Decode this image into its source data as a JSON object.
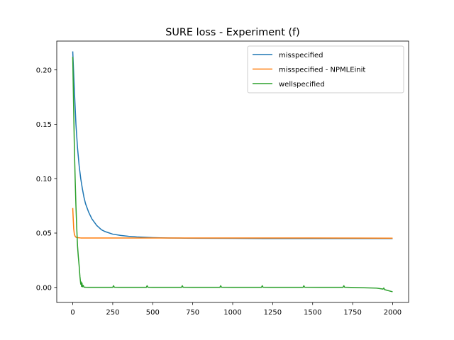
{
  "chart_data": {
    "type": "line",
    "title": "SURE loss - Experiment (f)",
    "xlabel": "",
    "ylabel": "",
    "xlim": [
      -100,
      2100
    ],
    "ylim": [
      -0.0138,
      0.2265
    ],
    "xticks": [
      0,
      250,
      500,
      750,
      1000,
      1250,
      1500,
      1750,
      2000
    ],
    "xtick_labels": [
      "0",
      "250",
      "500",
      "750",
      "1000",
      "1250",
      "1500",
      "1750",
      "2000"
    ],
    "yticks": [
      0.0,
      0.05,
      0.1,
      0.15,
      0.2
    ],
    "ytick_labels": [
      "0.00",
      "0.05",
      "0.10",
      "0.15",
      "0.20"
    ],
    "grid": false,
    "legend_position": "top-right",
    "series": [
      {
        "name": "misspecified",
        "color": "#1f77b4",
        "x": [
          0,
          10,
          20,
          30,
          40,
          50,
          60,
          70,
          80,
          100,
          120,
          150,
          180,
          200,
          250,
          300,
          350,
          400,
          500,
          600,
          700,
          800,
          1000,
          1200,
          1500,
          1800,
          2000
        ],
        "y": [
          0.217,
          0.182,
          0.15,
          0.128,
          0.112,
          0.1,
          0.091,
          0.083,
          0.077,
          0.069,
          0.063,
          0.057,
          0.053,
          0.0515,
          0.049,
          0.0478,
          0.047,
          0.0464,
          0.0458,
          0.0455,
          0.0453,
          0.0452,
          0.0451,
          0.045,
          0.045,
          0.045,
          0.045
        ]
      },
      {
        "name": "misspecified - NPMLEinit",
        "color": "#ff7f0e",
        "x": [
          0,
          3,
          6,
          10,
          15,
          20,
          30,
          50,
          100,
          500,
          1000,
          1500,
          2000
        ],
        "y": [
          0.073,
          0.063,
          0.054,
          0.049,
          0.047,
          0.0462,
          0.0458,
          0.0455,
          0.0455,
          0.0455,
          0.0455,
          0.0455,
          0.0453
        ]
      },
      {
        "name": "wellspecified",
        "color": "#2ca02c",
        "x": [
          0,
          5,
          10,
          15,
          20,
          25,
          30,
          35,
          40,
          45,
          50,
          53,
          55,
          58,
          60,
          65,
          70,
          80,
          100,
          150,
          200,
          250,
          255,
          260,
          300,
          350,
          400,
          460,
          465,
          470,
          500,
          600,
          680,
          685,
          690,
          750,
          900,
          920,
          925,
          930,
          1000,
          1100,
          1180,
          1185,
          1190,
          1300,
          1440,
          1445,
          1450,
          1550,
          1690,
          1695,
          1700,
          1800,
          1900,
          1940,
          1945,
          1950,
          1970,
          2000
        ],
        "y": [
          0.212,
          0.17,
          0.13,
          0.1,
          0.075,
          0.055,
          0.038,
          0.028,
          0.02,
          0.01,
          0.003,
          0.005,
          0.001,
          0.004,
          0.0005,
          0.002,
          0.0003,
          0.0002,
          0.0001,
          0.0001,
          0.0001,
          0.0001,
          0.0016,
          0.0002,
          0.0001,
          0.0001,
          0.0001,
          0.0001,
          0.0016,
          0.0002,
          0.0001,
          0.0001,
          0.0001,
          0.0016,
          0.0002,
          0.0001,
          0.0001,
          0.0001,
          0.0016,
          0.0002,
          0.0001,
          0.0001,
          0.0001,
          0.0016,
          0.0002,
          0.0001,
          0.0001,
          0.0016,
          0.0002,
          0.0001,
          0.0001,
          0.0016,
          0.0002,
          -0.0002,
          -0.0006,
          -0.0015,
          -0.0005,
          -0.002,
          -0.0028,
          -0.004
        ]
      }
    ]
  }
}
